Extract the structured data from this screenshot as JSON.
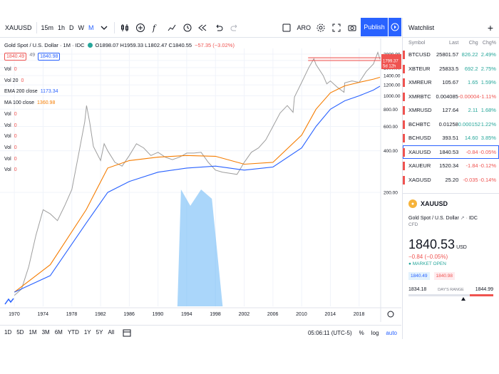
{
  "toolbar": {
    "symbol": "XAUUSD",
    "intervals": [
      "15m",
      "1h",
      "D",
      "W",
      "M"
    ],
    "active_interval": "M",
    "currency": "ARO",
    "publish_label": "Publish"
  },
  "legend": {
    "name": "Gold Spot / U.S. Dollar · 1M · IDC",
    "ohlc": "O1898.07 H1959.33 L1802.47 C1840.55",
    "change": "−57.35 (−3.02%)",
    "pill_sell": "1840.49",
    "spread": "49",
    "pill_buy": "1840.98"
  },
  "indicators": [
    {
      "label": "Vol",
      "value": "0",
      "color": "#ef5350"
    },
    {
      "label": "Vol 20",
      "value": "0",
      "color": "#ef5350"
    },
    {
      "label": "EMA 200 close",
      "value": "1173.34",
      "color": "#2962ff"
    },
    {
      "label": "MA 100 close",
      "value": "1360.98",
      "color": "#f57c00"
    },
    {
      "label": "Vol",
      "value": "0",
      "color": "#ef5350"
    },
    {
      "label": "Vol",
      "value": "0",
      "color": "#ef5350"
    },
    {
      "label": "Vol",
      "value": "0",
      "color": "#ef5350"
    },
    {
      "label": "Vol",
      "value": "0",
      "color": "#ef5350"
    },
    {
      "label": "Vol",
      "value": "0",
      "color": "#ef5350"
    },
    {
      "label": "Vol",
      "value": "0",
      "color": "#ef5350"
    }
  ],
  "chart_data": {
    "type": "line",
    "scale": "log",
    "xlim": [
      1968,
      2021
    ],
    "ylim": [
      30,
      2200
    ],
    "y_ticks": [
      200,
      400,
      600,
      800,
      1000,
      1200,
      1400,
      1600,
      1800,
      2000
    ],
    "x_ticks": [
      "1970",
      "1974",
      "1978",
      "1982",
      "1986",
      "1990",
      "1994",
      "1998",
      "2002",
      "2006",
      "2010",
      "2014",
      "2018"
    ],
    "price_labels": [
      {
        "text": "1885.88",
        "color": "#ef5350"
      },
      {
        "text": "1840.55",
        "color": "#ef5350"
      },
      {
        "text": "5d 12h",
        "color": "#ef5350"
      },
      {
        "text": "1799.37",
        "color": "#ef5350"
      }
    ],
    "series": [
      {
        "name": "XAUUSD",
        "color": "#9e9e9e",
        "x": [
          1970,
          1971,
          1972,
          1973,
          1974,
          1975,
          1976,
          1977,
          1978,
          1979,
          1979.8,
          1980.05,
          1980.5,
          1981,
          1982,
          1982.5,
          1983,
          1984,
          1985,
          1986,
          1987,
          1988,
          1989,
          1990,
          1991,
          1992,
          1993,
          1994,
          1995,
          1996,
          1997,
          1998,
          1999,
          2000,
          2001,
          2002,
          2003,
          2004,
          2005,
          2006,
          2007,
          2008,
          2008.8,
          2009,
          2010,
          2011,
          2011.7,
          2012,
          2013,
          2013.5,
          2014,
          2015,
          2015.9,
          2016,
          2017,
          2018,
          2019,
          2020,
          2020.6,
          2020.9
        ],
        "y": [
          36,
          40,
          58,
          98,
          150,
          140,
          125,
          160,
          210,
          390,
          650,
          850,
          640,
          430,
          340,
          450,
          400,
          330,
          310,
          370,
          450,
          420,
          370,
          390,
          360,
          345,
          360,
          385,
          385,
          390,
          330,
          290,
          280,
          275,
          270,
          330,
          390,
          420,
          480,
          600,
          750,
          850,
          760,
          980,
          1250,
          1600,
          1850,
          1680,
          1400,
          1220,
          1280,
          1150,
          1060,
          1240,
          1280,
          1250,
          1500,
          1700,
          2060,
          1840
        ]
      },
      {
        "name": "MA 100 close",
        "color": "#f57c00",
        "x": [
          1970,
          1975,
          1980,
          1983,
          1986,
          1990,
          1994,
          1998,
          2002,
          2006,
          2010,
          2012,
          2014,
          2016,
          2018,
          2020,
          2020.9
        ],
        "y": [
          38,
          60,
          150,
          300,
          340,
          360,
          370,
          365,
          320,
          330,
          520,
          800,
          1050,
          1180,
          1250,
          1320,
          1360
        ]
      },
      {
        "name": "EMA 200 close",
        "color": "#2962ff",
        "x": [
          1970,
          1975,
          1980,
          1983,
          1986,
          1990,
          1994,
          1998,
          2002,
          2006,
          2010,
          2012,
          2014,
          2016,
          2018,
          2020,
          2020.9
        ],
        "y": [
          38,
          50,
          120,
          200,
          240,
          280,
          300,
          310,
          290,
          305,
          420,
          600,
          800,
          920,
          1000,
          1100,
          1173
        ]
      }
    ]
  },
  "bottombar": {
    "ranges": [
      "1D",
      "5D",
      "1M",
      "3M",
      "6M",
      "YTD",
      "1Y",
      "5Y",
      "All"
    ],
    "time": "05:06:11 (UTC-5)",
    "percent": "%",
    "log": "log",
    "auto": "auto"
  },
  "watchlist": {
    "title": "Watchlist",
    "cols": {
      "symbol": "Symbol",
      "last": "Last",
      "chg": "Chg",
      "pct": "Chg%"
    },
    "rows": [
      {
        "symbol": "BTCUSD",
        "last": "25801.57",
        "chg": "826.22",
        "pct": "2.49%",
        "dir": "pos"
      },
      {
        "symbol": "XBTEUR",
        "last": "25833.5",
        "chg": "692.2",
        "pct": "2.75%",
        "dir": "pos"
      },
      {
        "symbol": "XMREUR",
        "last": "105.67",
        "chg": "1.65",
        "pct": "1.59%",
        "dir": "pos"
      },
      {
        "symbol": "XMRBTC",
        "last": "0.004085",
        "chg": "-0.00004",
        "pct": "-1.11%",
        "dir": "neg"
      },
      {
        "symbol": "XMRUSD",
        "last": "127.64",
        "chg": "2.11",
        "pct": "1.68%",
        "dir": "pos"
      },
      {
        "symbol": "BCHBTC",
        "last": "0.01258",
        "chg": "0.000152",
        "pct": "1.22%",
        "dir": "pos"
      },
      {
        "symbol": "BCHUSD",
        "last": "393.51",
        "chg": "14.60",
        "pct": "3.85%",
        "dir": "pos"
      },
      {
        "symbol": "XAUUSD",
        "last": "1840.53",
        "chg": "-0.84",
        "pct": "-0.05%",
        "dir": "neg",
        "selected": true
      },
      {
        "symbol": "XAUEUR",
        "last": "1520.34",
        "chg": "-1.84",
        "pct": "-0.12%",
        "dir": "neg"
      },
      {
        "symbol": "XAGUSD",
        "last": "25.20",
        "chg": "-0.035",
        "pct": "-0.14%",
        "dir": "neg"
      }
    ]
  },
  "detail": {
    "symbol": "XAUUSD",
    "desc": "Gold Spot / U.S. Dollar",
    "exchange": "IDC",
    "category": "CFD",
    "price": "1840.53",
    "currency": "USD",
    "change": "−0.84 (−0.05%)",
    "status": "MARKET OPEN",
    "pill_sell": "1840.49",
    "pill_buy": "1840.98",
    "range_low": "1834.18",
    "range_label": "DAY'S RANGE",
    "range_high": "1844.99",
    "range_position": 0.62
  }
}
